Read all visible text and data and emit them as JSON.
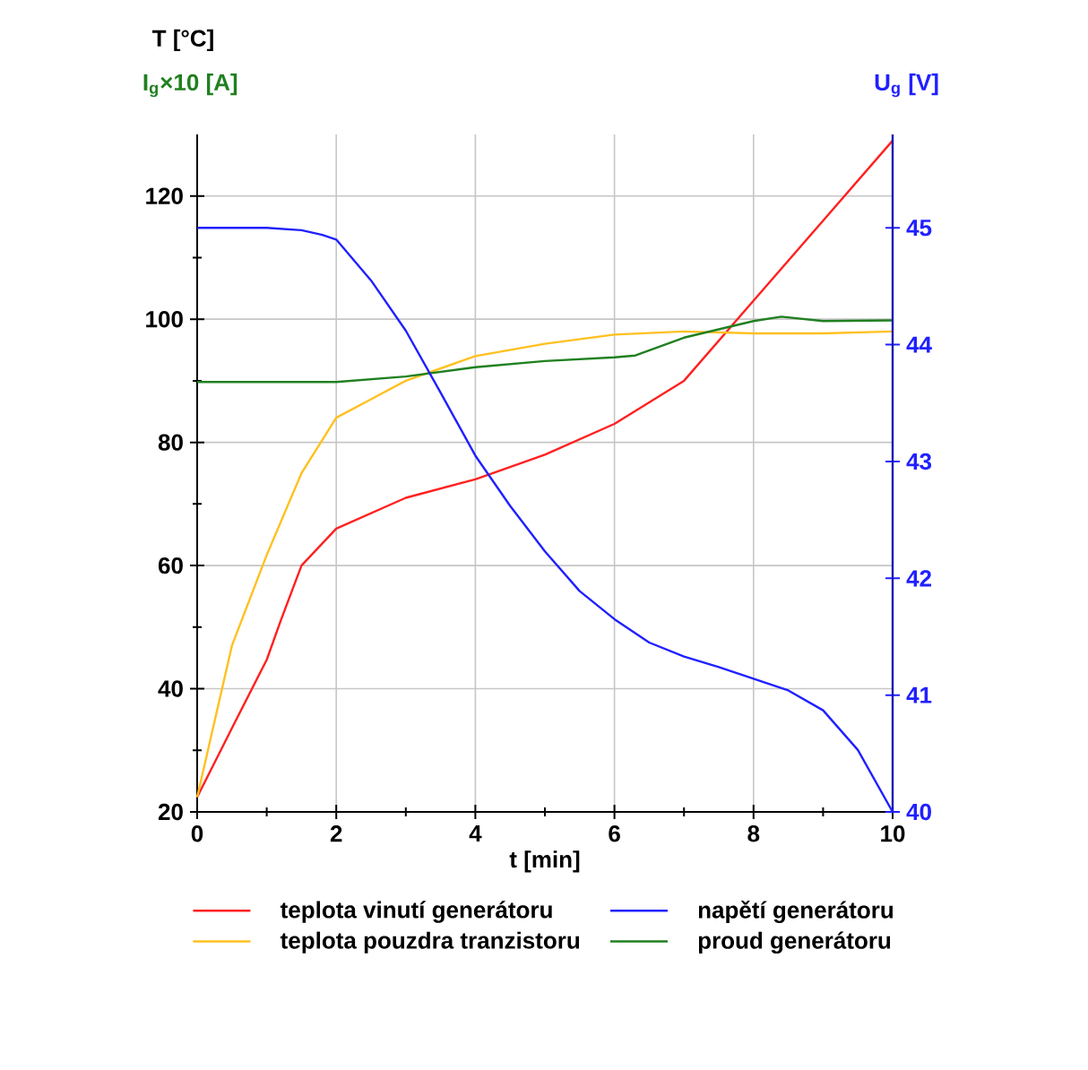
{
  "chart_data": {
    "type": "line",
    "ylabel": "T [°C]",
    "y2label": "U$_{g}$ [V]",
    "xlabel": "t [min]",
    "annotations": [
      "I$_{g}$×10 [A]"
    ],
    "xlim": [
      0,
      10
    ],
    "xticks": [
      0,
      2,
      4,
      6,
      8,
      10
    ],
    "ylim": [
      20,
      130
    ],
    "yticks": [
      20,
      40,
      60,
      80,
      100,
      120
    ],
    "y2lim": [
      40,
      45.8
    ],
    "y2ticks": [
      40,
      41,
      42,
      43,
      44,
      45
    ],
    "grid": true,
    "legend": "bottom",
    "line_style": "solid",
    "marker": "none",
    "series": [
      {
        "name": "teplota vinutí generátoru",
        "color": "#ff2020",
        "x": [
          0,
          0.5,
          1,
          1.2,
          1.5,
          2,
          3,
          4,
          5,
          6,
          7,
          8,
          9,
          10
        ],
        "values": [
          22.4,
          33.6,
          44.7,
          51,
          60,
          66,
          71,
          74,
          78,
          83,
          90,
          103,
          116,
          129
        ]
      },
      {
        "name": "teplota pouzdra tranzistoru",
        "color": "#ffc020",
        "x": [
          0,
          0.5,
          1,
          1.5,
          2,
          2.5,
          3,
          4,
          5,
          6,
          7,
          8,
          9,
          10
        ],
        "values": [
          22.4,
          47,
          61.7,
          75,
          84,
          87,
          90,
          94,
          96,
          97.5,
          98,
          97.7,
          97.7,
          98
        ]
      },
      {
        "name": "napětí generátoru",
        "color": "#2020ff",
        "axis": "y2",
        "x": [
          0,
          1,
          1.5,
          1.8,
          2,
          2.5,
          3,
          3.5,
          4,
          4.5,
          5,
          5.5,
          6,
          6.5,
          7,
          7.5,
          8,
          8.5,
          9,
          9.5,
          10
        ],
        "values": [
          45,
          45,
          44.98,
          44.94,
          44.9,
          44.55,
          44.12,
          43.59,
          43.05,
          42.62,
          42.23,
          41.89,
          41.65,
          41.45,
          41.33,
          41.24,
          41.14,
          41.04,
          40.87,
          40.53,
          40
        ]
      },
      {
        "name": "proud generátoru",
        "color": "#208020",
        "x": [
          0,
          1,
          2,
          3,
          4,
          5,
          6,
          6.3,
          7,
          8,
          8.4,
          9,
          10
        ],
        "values": [
          89.8,
          89.8,
          89.8,
          90.7,
          92.2,
          93.2,
          93.8,
          94.1,
          97,
          99.7,
          100.4,
          99.7,
          99.8
        ]
      }
    ]
  }
}
